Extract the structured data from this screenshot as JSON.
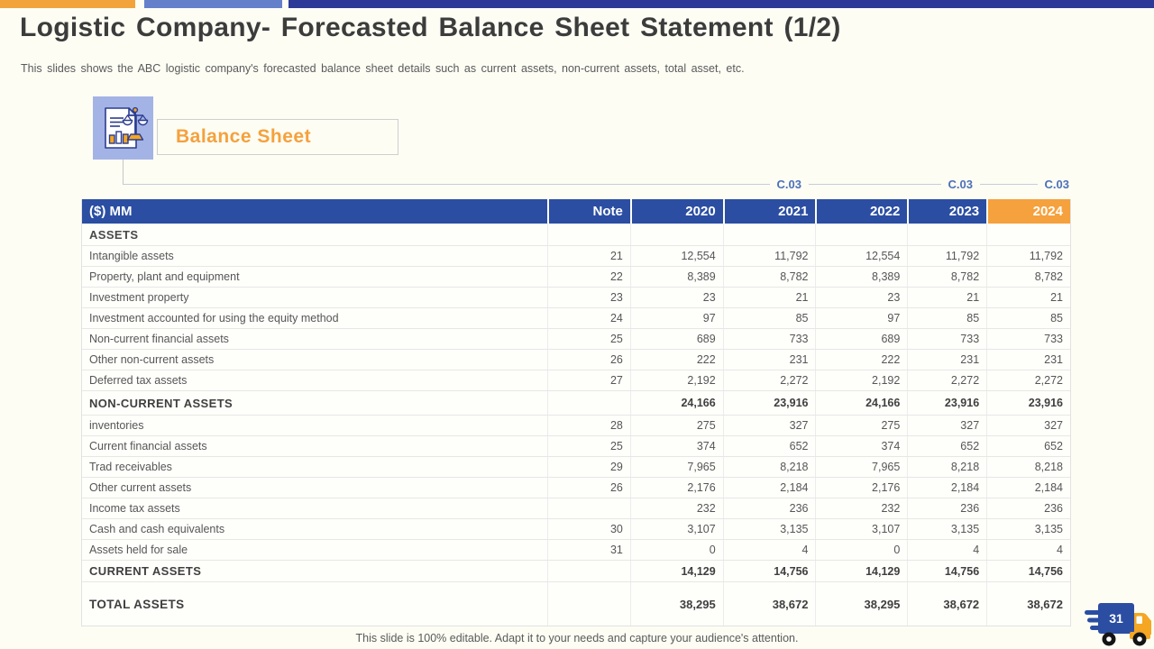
{
  "header": {
    "title": "Logistic Company- Forecasted Balance Sheet Statement (1/2)",
    "subtitle": "This slides shows the ABC logistic company's forecasted balance sheet details such as current assets, non-current assets, total asset, etc."
  },
  "section": {
    "label": "Balance Sheet",
    "icon": "balance-scale-document-icon"
  },
  "annotations": {
    "c03_labels": [
      "C.03",
      "C.03",
      "C.03"
    ]
  },
  "table": {
    "currency_header": "($) MM",
    "columns": [
      "Note",
      "2020",
      "2021",
      "2022",
      "2023",
      "2024"
    ],
    "rows": [
      {
        "label": "ASSETS",
        "style": "section",
        "note": "",
        "values": [
          "",
          "",
          "",
          "",
          ""
        ]
      },
      {
        "label": "Intangible assets",
        "style": "item",
        "note": "21",
        "values": [
          "12,554",
          "11,792",
          "12,554",
          "11,792",
          "11,792"
        ]
      },
      {
        "label": "Property, plant and equipment",
        "style": "item",
        "note": "22",
        "values": [
          "8,389",
          "8,782",
          "8,389",
          "8,782",
          "8,782"
        ]
      },
      {
        "label": "Investment property",
        "style": "item",
        "note": "23",
        "values": [
          "23",
          "21",
          "23",
          "21",
          "21"
        ]
      },
      {
        "label": "Investment accounted for using the equity method",
        "style": "item",
        "note": "24",
        "values": [
          "97",
          "85",
          "97",
          "85",
          "85"
        ]
      },
      {
        "label": "Non-current financial assets",
        "style": "item",
        "note": "25",
        "values": [
          "689",
          "733",
          "689",
          "733",
          "733"
        ]
      },
      {
        "label": "Other non-current assets",
        "style": "item",
        "note": "26",
        "values": [
          "222",
          "231",
          "222",
          "231",
          "231"
        ]
      },
      {
        "label": "Deferred tax assets",
        "style": "item",
        "note": "27",
        "values": [
          "2,192",
          "2,272",
          "2,192",
          "2,272",
          "2,272"
        ]
      },
      {
        "label": "NON-CURRENT ASSETS",
        "style": "subtotal",
        "note": "",
        "values": [
          "24,166",
          "23,916",
          "24,166",
          "23,916",
          "23,916"
        ]
      },
      {
        "label": "inventories",
        "style": "item",
        "note": "28",
        "values": [
          "275",
          "327",
          "275",
          "327",
          "327"
        ]
      },
      {
        "label": "Current financial assets",
        "style": "item",
        "note": "25",
        "values": [
          "374",
          "652",
          "374",
          "652",
          "652"
        ]
      },
      {
        "label": "Trad receivables",
        "style": "item",
        "note": "29",
        "values": [
          "7,965",
          "8,218",
          "7,965",
          "8,218",
          "8,218"
        ]
      },
      {
        "label": "Other current assets",
        "style": "item",
        "note": "26",
        "values": [
          "2,176",
          "2,184",
          "2,176",
          "2,184",
          "2,184"
        ]
      },
      {
        "label": "Income tax assets",
        "style": "item",
        "note": "",
        "values": [
          "232",
          "236",
          "232",
          "236",
          "236"
        ]
      },
      {
        "label": "Cash and cash equivalents",
        "style": "item",
        "note": "30",
        "values": [
          "3,107",
          "3,135",
          "3,107",
          "3,135",
          "3,135"
        ]
      },
      {
        "label": "Assets held for sale",
        "style": "item",
        "note": "31",
        "values": [
          "0",
          "4",
          "0",
          "4",
          "4"
        ]
      },
      {
        "label": "CURRENT ASSETS",
        "style": "subtotal2",
        "note": "",
        "values": [
          "14,129",
          "14,756",
          "14,129",
          "14,756",
          "14,756"
        ]
      },
      {
        "label": "TOTAL ASSETS",
        "style": "total",
        "note": "",
        "values": [
          "38,295",
          "38,672",
          "38,295",
          "38,672",
          "38,672"
        ]
      }
    ]
  },
  "footer": {
    "note": "This slide is 100% editable. Adapt it to your needs and capture your audience's attention.",
    "page_number": "31",
    "icon": "delivery-truck-icon"
  },
  "colors": {
    "accent_orange": "#F5A13D",
    "topbar_orange": "#F2A33C",
    "topbar_blue": "#6580CB",
    "topbar_dark_blue": "#2E3A97",
    "table_header_blue": "#2B4EA2",
    "c03_blue": "#4C70B8",
    "icon_tile_blue": "#A4B3E5"
  }
}
